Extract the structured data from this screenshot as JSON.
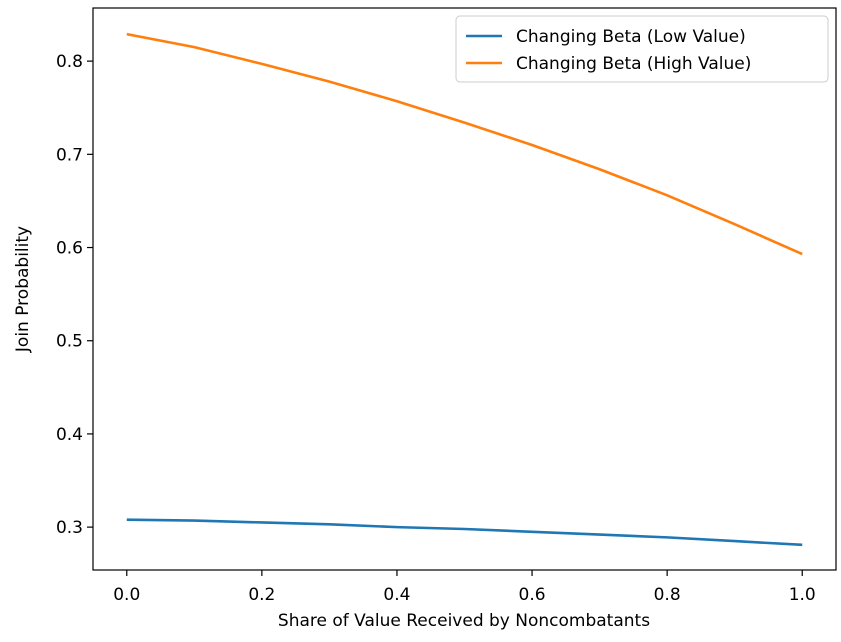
{
  "chart_data": {
    "type": "line",
    "xlabel": "Share of Value Received by Noncombatants",
    "ylabel": "Join Probability",
    "x": [
      0.0,
      0.1,
      0.2,
      0.3,
      0.4,
      0.5,
      0.6,
      0.7,
      0.8,
      0.9,
      1.0
    ],
    "series": [
      {
        "name": "Changing Beta (Low Value)",
        "color": "#1f77b4",
        "values": [
          0.308,
          0.307,
          0.305,
          0.303,
          0.3,
          0.298,
          0.295,
          0.292,
          0.289,
          0.285,
          0.281
        ]
      },
      {
        "name": "Changing Beta (High Value)",
        "color": "#ff7f0e",
        "values": [
          0.829,
          0.815,
          0.797,
          0.778,
          0.757,
          0.734,
          0.71,
          0.684,
          0.656,
          0.625,
          0.593
        ]
      }
    ],
    "xlim": [
      -0.05,
      1.05
    ],
    "ylim": [
      0.254,
      0.857
    ],
    "xticks": [
      {
        "value": 0,
        "label": "0.0"
      },
      0.2,
      0.4,
      0.6,
      0.8,
      {
        "value": 1,
        "label": "1.0"
      }
    ],
    "yticks": [
      0.3,
      0.4,
      0.5,
      0.6,
      0.7,
      0.8
    ],
    "legend": "upper right"
  }
}
